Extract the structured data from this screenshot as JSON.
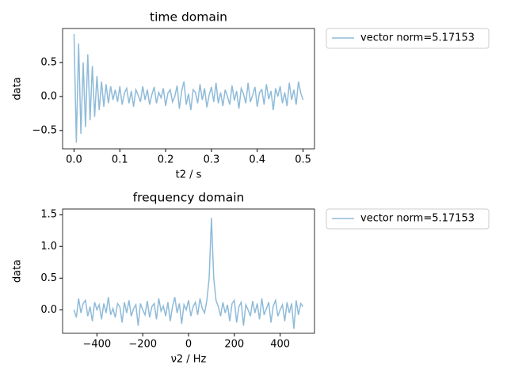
{
  "chart_data": [
    {
      "type": "line",
      "title": "time domain",
      "x_label": "t2 / s",
      "y_label": "data",
      "xlim": [
        -0.025,
        0.525
      ],
      "ylim": [
        -0.77,
        1.0
      ],
      "xticks": [
        {
          "value": 0.0,
          "label": "0.0"
        },
        0.1,
        0.2,
        0.3,
        0.4,
        0.5
      ],
      "yticks": [
        {
          "value": -0.5,
          "label": "−0.5"
        },
        {
          "value": 0.0,
          "label": "0.0"
        },
        0.5
      ],
      "legend": "outside upper right",
      "series": [
        {
          "name": "vector norm=5.17153",
          "color": "#8fbbd9",
          "x": [
            0,
            0.005,
            0.01,
            0.015,
            0.02,
            0.025,
            0.03,
            0.035,
            0.04,
            0.045,
            0.05,
            0.055,
            0.06,
            0.065,
            0.07,
            0.075,
            0.08,
            0.085,
            0.09,
            0.095,
            0.1,
            0.105,
            0.11,
            0.115,
            0.12,
            0.125,
            0.13,
            0.135,
            0.14,
            0.145,
            0.15,
            0.155,
            0.16,
            0.165,
            0.17,
            0.175,
            0.18,
            0.185,
            0.19,
            0.195,
            0.2,
            0.205,
            0.21,
            0.215,
            0.22,
            0.225,
            0.23,
            0.235,
            0.24,
            0.245,
            0.25,
            0.255,
            0.26,
            0.265,
            0.27,
            0.275,
            0.28,
            0.285,
            0.29,
            0.295,
            0.3,
            0.305,
            0.31,
            0.315,
            0.32,
            0.325,
            0.33,
            0.335,
            0.34,
            0.345,
            0.35,
            0.355,
            0.36,
            0.365,
            0.37,
            0.375,
            0.38,
            0.385,
            0.39,
            0.395,
            0.4,
            0.405,
            0.41,
            0.415,
            0.42,
            0.425,
            0.43,
            0.435,
            0.44,
            0.445,
            0.45,
            0.455,
            0.46,
            0.465,
            0.47,
            0.475,
            0.48,
            0.485,
            0.49,
            0.495,
            0.5
          ],
          "values": [
            0.92,
            -0.68,
            0.78,
            -0.55,
            0.5,
            -0.45,
            0.62,
            -0.35,
            0.45,
            -0.3,
            0.3,
            -0.2,
            0.22,
            -0.15,
            0.18,
            -0.1,
            0.15,
            -0.05,
            0.1,
            -0.08,
            0.15,
            -0.12,
            0.05,
            0.12,
            -0.1,
            0.08,
            -0.15,
            0.1,
            0.02,
            -0.08,
            0.15,
            -0.05,
            0.1,
            -0.12,
            0.03,
            0.14,
            -0.1,
            0.06,
            -0.02,
            0.12,
            -0.14,
            0.05,
            0.1,
            -0.08,
            0.0,
            0.16,
            -0.18,
            0.08,
            0.22,
            -0.12,
            0.04,
            -0.2,
            0.1,
            0.06,
            -0.1,
            0.18,
            -0.05,
            0.12,
            -0.16,
            0.02,
            0.14,
            -0.08,
            0.2,
            -0.1,
            0.06,
            -0.14,
            0.1,
            0.0,
            -0.12,
            0.16,
            -0.06,
            0.08,
            -0.18,
            0.12,
            0.04,
            -0.1,
            0.2,
            -0.08,
            0.02,
            0.14,
            -0.15,
            0.06,
            0.1,
            -0.12,
            0.18,
            -0.04,
            0.08,
            -0.2,
            0.12,
            0.0,
            0.15,
            -0.1,
            0.06,
            -0.14,
            0.2,
            -0.05,
            0.1,
            -0.12,
            0.22,
            0.05,
            -0.05
          ]
        }
      ]
    },
    {
      "type": "line",
      "title": "frequency domain",
      "x_label": "ν2 / Hz",
      "y_label": "data",
      "xlim": [
        -550,
        550
      ],
      "ylim": [
        -0.37,
        1.59
      ],
      "xticks": [
        {
          "value": -400,
          "label": "−400"
        },
        {
          "value": -200,
          "label": "−200"
        },
        0,
        200,
        400
      ],
      "yticks": [
        {
          "value": 0.0,
          "label": "0.0"
        },
        0.5,
        {
          "value": 1.0,
          "label": "1.0"
        },
        1.5
      ],
      "legend": "outside upper right",
      "series": [
        {
          "name": "vector norm=5.17153",
          "color": "#8fbbd9",
          "x": [
            -500,
            -490,
            -480,
            -470,
            -460,
            -450,
            -440,
            -430,
            -420,
            -410,
            -400,
            -390,
            -380,
            -370,
            -360,
            -350,
            -340,
            -330,
            -320,
            -310,
            -300,
            -290,
            -280,
            -270,
            -260,
            -250,
            -240,
            -230,
            -220,
            -210,
            -200,
            -190,
            -180,
            -170,
            -160,
            -150,
            -140,
            -130,
            -120,
            -110,
            -100,
            -90,
            -80,
            -70,
            -60,
            -50,
            -40,
            -30,
            -20,
            -10,
            0,
            10,
            20,
            30,
            40,
            50,
            60,
            70,
            80,
            90,
            100,
            110,
            120,
            130,
            140,
            150,
            160,
            170,
            180,
            190,
            200,
            210,
            220,
            230,
            240,
            250,
            260,
            270,
            280,
            290,
            300,
            310,
            320,
            330,
            340,
            350,
            360,
            370,
            380,
            390,
            400,
            410,
            420,
            430,
            440,
            450,
            460,
            470,
            480,
            490,
            500
          ],
          "values": [
            0.0,
            -0.12,
            0.18,
            -0.05,
            0.1,
            0.15,
            -0.1,
            0.05,
            -0.18,
            0.12,
            0.0,
            0.08,
            -0.15,
            0.1,
            -0.05,
            0.2,
            -0.08,
            0.02,
            -0.12,
            0.1,
            0.05,
            -0.2,
            0.12,
            -0.05,
            0.15,
            -0.1,
            0.02,
            0.08,
            -0.25,
            0.1,
            0.0,
            -0.08,
            0.14,
            -0.12,
            0.05,
            0.1,
            -0.15,
            0.18,
            -0.02,
            0.06,
            -0.1,
            0.12,
            -0.18,
            0.05,
            0.2,
            -0.05,
            0.1,
            -0.22,
            0.08,
            0.0,
            0.15,
            -0.1,
            0.05,
            0.12,
            -0.08,
            0.18,
            0.02,
            -0.05,
            0.15,
            0.5,
            1.45,
            0.5,
            0.15,
            0.05,
            -0.1,
            0.12,
            -0.05,
            0.08,
            -0.18,
            0.1,
            0.15,
            -0.2,
            0.05,
            0.12,
            -0.25,
            0.08,
            0.0,
            -0.1,
            0.14,
            -0.05,
            0.1,
            -0.15,
            0.18,
            -0.08,
            0.02,
            0.12,
            -0.2,
            0.06,
            0.15,
            -0.1,
            0.0,
            0.08,
            -0.18,
            0.12,
            -0.05,
            0.1,
            -0.3,
            0.15,
            -0.08,
            0.1,
            0.05
          ]
        }
      ]
    }
  ]
}
